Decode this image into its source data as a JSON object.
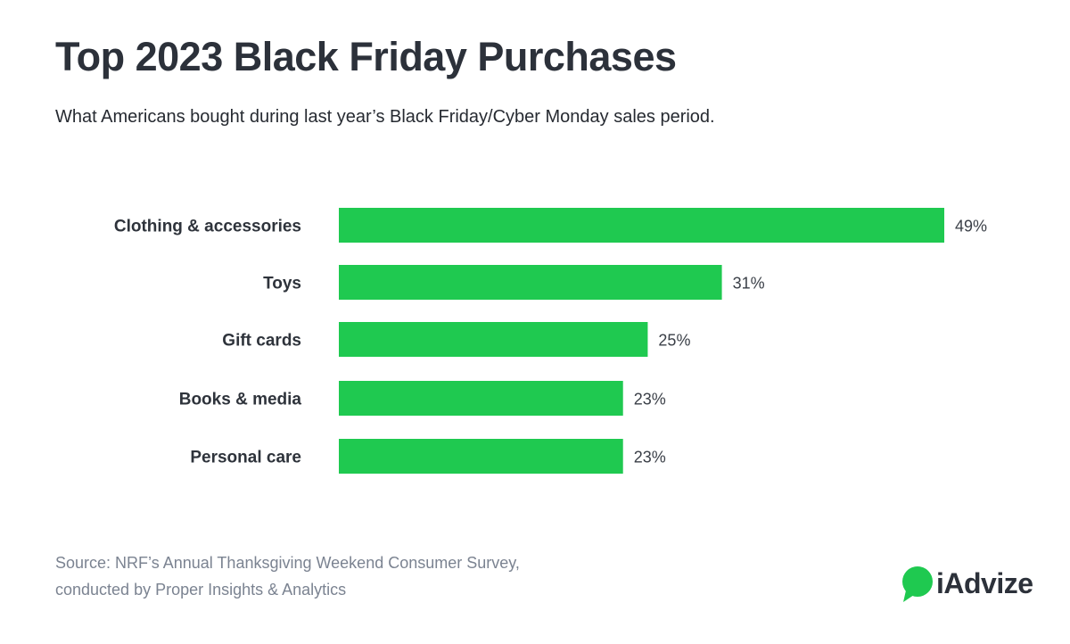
{
  "title": "Top 2023 Black Friday Purchases",
  "subtitle": "What Americans bought during last year’s Black Friday/Cyber Monday sales period.",
  "source": {
    "line1": "Source: NRF’s Annual Thanksgiving Weekend Consumer Survey,",
    "line2": "conducted by Proper Insights & Analytics"
  },
  "brand": {
    "name": "iAdvize",
    "icon": "speech-bubble-icon",
    "color": "#1fc950"
  },
  "colors": {
    "bar": "#1fc950",
    "text": "#2c313a",
    "source_text": "#7b8391"
  },
  "chart_data": {
    "type": "bar",
    "orientation": "horizontal",
    "categories": [
      "Clothing & accessories",
      "Toys",
      "Gift cards",
      "Books & media",
      "Personal care"
    ],
    "values": [
      49,
      31,
      25,
      23,
      23
    ],
    "value_labels": [
      "49%",
      "31%",
      "25%",
      "23%",
      "23%"
    ],
    "unit": "%",
    "xlim": [
      0,
      49
    ],
    "grid": false,
    "legend": "none"
  }
}
